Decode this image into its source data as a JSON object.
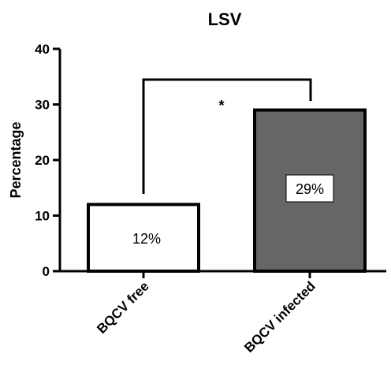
{
  "chart_data": {
    "type": "bar",
    "title": "LSV",
    "xlabel": "",
    "ylabel": "Percentage",
    "ylim": [
      0,
      40
    ],
    "yticks": [
      0,
      10,
      20,
      30,
      40
    ],
    "categories": [
      "BQCV free",
      "BQCV infected"
    ],
    "values": [
      12,
      29
    ],
    "data_labels": [
      "12%",
      "29%"
    ],
    "bar_colors": [
      "#ffffff",
      "#666666"
    ],
    "significance": {
      "between": [
        0,
        1
      ],
      "label": "*"
    },
    "grid": false,
    "legend": "none"
  }
}
